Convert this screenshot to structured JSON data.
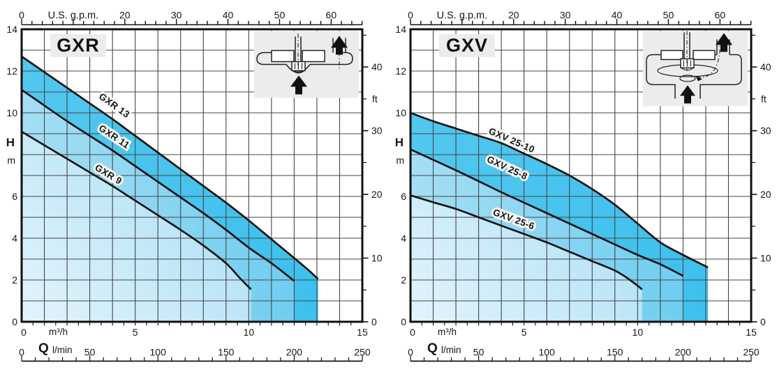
{
  "palette": {
    "background": "#ffffff",
    "band_dark_left": "#52c7ef",
    "band_dark_right": "#3ec0ed",
    "band_mid_left": "#a5def5",
    "band_mid_right": "#6fcdf0",
    "band_light_start": "#e3f4fc",
    "band_light_end": "#9fdbf4",
    "grid": "#454545",
    "axis": "#101010",
    "curve": "#161616",
    "panel": "#ececec",
    "halo": "#f8f8f8",
    "text": "#161616"
  },
  "chart_data": [
    {
      "type": "line",
      "title": "GXR",
      "icon": "horizontal-peripheral-pump-section-icon",
      "grid": true,
      "xlabel": "Q",
      "ylabel": "H",
      "xlim_m3h": [
        0,
        15
      ],
      "ylim_m": [
        0,
        14
      ],
      "x_axes": [
        {
          "unit": "U.S. g.p.m.",
          "position": "top",
          "labeled_ticks": [
            0,
            20,
            30,
            40,
            50,
            60
          ],
          "unit_label_at": 10,
          "minor_step": 2,
          "max": 66
        },
        {
          "unit": "m³/h",
          "position": "bottom",
          "prefix": "Q",
          "ticks": [
            0,
            5,
            10,
            15
          ],
          "minor_step": 0.5,
          "max": 15
        },
        {
          "unit": "l/min",
          "position": "bottom",
          "ticks": [
            0,
            50,
            100,
            150,
            200,
            250
          ],
          "minor_step": 10,
          "max": 250
        }
      ],
      "y_axes": [
        {
          "unit": "m",
          "symbol": "H",
          "position": "left",
          "labeled_ticks": [
            14,
            12,
            10,
            6,
            4,
            2,
            0
          ],
          "grid_step": 1,
          "max": 14
        },
        {
          "unit": "ft",
          "position": "right",
          "labeled_ticks": [
            0,
            10,
            20,
            30,
            40
          ],
          "minor_ticks": [
            5,
            15,
            25,
            35,
            45
          ]
        }
      ],
      "series": [
        {
          "name": "GXR 13",
          "points_m3h_m": [
            [
              0,
              12.7
            ],
            [
              1,
              11.95
            ],
            [
              2,
              11.2
            ],
            [
              3,
              10.45
            ],
            [
              4,
              9.7
            ],
            [
              5,
              8.9
            ],
            [
              6,
              8.1
            ],
            [
              7,
              7.3
            ],
            [
              8,
              6.5
            ],
            [
              9,
              5.7
            ],
            [
              10,
              4.85
            ],
            [
              11,
              3.95
            ],
            [
              12,
              3.05
            ],
            [
              12.6,
              2.5
            ],
            [
              13.05,
              2.05
            ]
          ]
        },
        {
          "name": "GXR 11",
          "points_m3h_m": [
            [
              0,
              11.1
            ],
            [
              1,
              10.35
            ],
            [
              2,
              9.6
            ],
            [
              3,
              8.9
            ],
            [
              4,
              8.2
            ],
            [
              5,
              7.45
            ],
            [
              6,
              6.7
            ],
            [
              7,
              5.95
            ],
            [
              8,
              5.2
            ],
            [
              9,
              4.4
            ],
            [
              10,
              3.55
            ],
            [
              11,
              2.8
            ],
            [
              11.6,
              2.3
            ],
            [
              12,
              1.95
            ]
          ]
        },
        {
          "name": "GXR 9",
          "points_m3h_m": [
            [
              0,
              9.1
            ],
            [
              1,
              8.45
            ],
            [
              2,
              7.8
            ],
            [
              3,
              7.15
            ],
            [
              4,
              6.5
            ],
            [
              5,
              5.8
            ],
            [
              6,
              5.1
            ],
            [
              7,
              4.4
            ],
            [
              8,
              3.65
            ],
            [
              9,
              2.8
            ],
            [
              9.6,
              2.1
            ],
            [
              10.1,
              1.55
            ]
          ]
        }
      ]
    },
    {
      "type": "line",
      "title": "GXV",
      "icon": "vertical-vortex-pump-section-icon",
      "grid": true,
      "xlabel": "Q",
      "ylabel": "H",
      "xlim_m3h": [
        0,
        15
      ],
      "ylim_m": [
        0,
        14
      ],
      "x_axes": [
        {
          "unit": "U.S. g.p.m.",
          "position": "top",
          "labeled_ticks": [
            0,
            20,
            30,
            40,
            50,
            60
          ],
          "unit_label_at": 10,
          "minor_step": 2,
          "max": 66
        },
        {
          "unit": "m³/h",
          "position": "bottom",
          "prefix": "Q",
          "ticks": [
            0,
            5,
            10,
            15
          ],
          "minor_step": 0.5,
          "max": 15
        },
        {
          "unit": "l/min",
          "position": "bottom",
          "ticks": [
            0,
            50,
            100,
            150,
            200,
            250
          ],
          "minor_step": 10,
          "max": 250
        }
      ],
      "y_axes": [
        {
          "unit": "m",
          "symbol": "H",
          "position": "left",
          "labeled_ticks": [
            14,
            12,
            10,
            6,
            4,
            2,
            0
          ],
          "grid_step": 1,
          "max": 14
        },
        {
          "unit": "ft",
          "position": "right",
          "labeled_ticks": [
            0,
            10,
            20,
            30,
            40
          ],
          "minor_ticks": [
            5,
            15,
            25,
            35,
            45
          ]
        }
      ],
      "series": [
        {
          "name": "GXV 25-10",
          "points_m3h_m": [
            [
              0,
              10.0
            ],
            [
              1,
              9.6
            ],
            [
              2,
              9.25
            ],
            [
              3,
              8.9
            ],
            [
              4,
              8.55
            ],
            [
              5,
              8.05
            ],
            [
              6,
              7.55
            ],
            [
              7,
              7.0
            ],
            [
              8,
              6.35
            ],
            [
              9,
              5.6
            ],
            [
              10,
              4.7
            ],
            [
              11,
              3.8
            ],
            [
              12,
              3.2
            ],
            [
              13.1,
              2.6
            ]
          ]
        },
        {
          "name": "GXV 25-8",
          "points_m3h_m": [
            [
              0,
              8.25
            ],
            [
              1,
              7.75
            ],
            [
              2,
              7.25
            ],
            [
              3,
              6.73
            ],
            [
              4,
              6.2
            ],
            [
              5,
              5.7
            ],
            [
              6,
              5.2
            ],
            [
              7,
              4.7
            ],
            [
              8,
              4.2
            ],
            [
              9,
              3.7
            ],
            [
              10,
              3.2
            ],
            [
              11,
              2.75
            ],
            [
              12,
              2.2
            ]
          ]
        },
        {
          "name": "GXV 25-6",
          "points_m3h_m": [
            [
              0,
              6.05
            ],
            [
              1,
              5.72
            ],
            [
              2,
              5.4
            ],
            [
              3,
              5.0
            ],
            [
              4,
              4.6
            ],
            [
              5,
              4.2
            ],
            [
              6,
              3.8
            ],
            [
              7,
              3.35
            ],
            [
              8,
              2.9
            ],
            [
              9,
              2.45
            ],
            [
              9.6,
              2.05
            ],
            [
              10.2,
              1.55
            ]
          ]
        }
      ]
    }
  ]
}
